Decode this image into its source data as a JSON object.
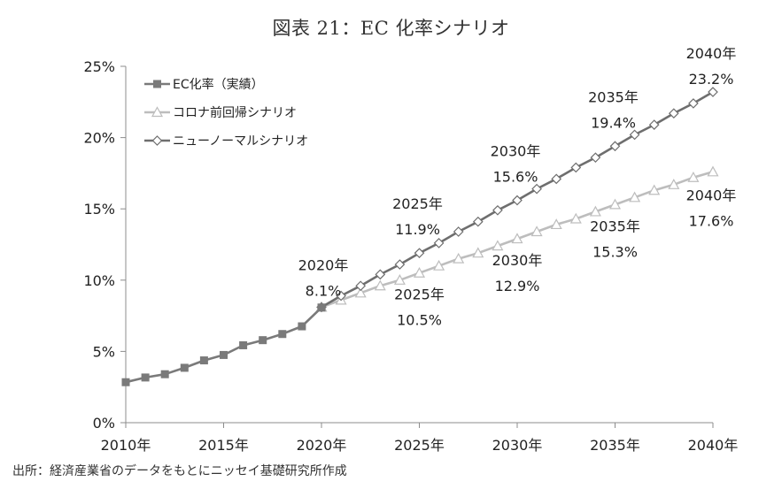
{
  "title": "図表 21：EC 化率シナリオ",
  "source": "出所：経済産業省のデータをもとにニッセイ基礎研究所作成",
  "chart_data": {
    "type": "line",
    "title": "図表 21：EC 化率シナリオ",
    "xlabel": "",
    "ylabel": "",
    "x_ticks": [
      "2010年",
      "2015年",
      "2020年",
      "2025年",
      "2030年",
      "2035年",
      "2040年"
    ],
    "y_ticks": [
      "0%",
      "5%",
      "10%",
      "15%",
      "20%",
      "25%"
    ],
    "xlim": [
      2010,
      2040
    ],
    "ylim": [
      0,
      25
    ],
    "grid": false,
    "legend_position": "top-left",
    "series": [
      {
        "name": "EC化率（実績）",
        "color": "#7a7a7a",
        "marker": "square",
        "x": [
          2010,
          2011,
          2012,
          2013,
          2014,
          2015,
          2016,
          2017,
          2018,
          2019,
          2020
        ],
        "values": [
          2.84,
          3.17,
          3.4,
          3.85,
          4.37,
          4.75,
          5.43,
          5.79,
          6.22,
          6.76,
          8.08
        ]
      },
      {
        "name": "コロナ前回帰シナリオ",
        "color": "#bdbdbd",
        "marker": "triangle",
        "x": [
          2020,
          2021,
          2022,
          2023,
          2024,
          2025,
          2026,
          2027,
          2028,
          2029,
          2030,
          2031,
          2032,
          2033,
          2034,
          2035,
          2036,
          2037,
          2038,
          2039,
          2040
        ],
        "values": [
          8.1,
          8.6,
          9.1,
          9.6,
          10.0,
          10.5,
          11.0,
          11.5,
          11.9,
          12.4,
          12.9,
          13.4,
          13.9,
          14.3,
          14.8,
          15.3,
          15.8,
          16.3,
          16.7,
          17.2,
          17.6
        ]
      },
      {
        "name": "ニューノーマルシナリオ",
        "color": "#6e6e6e",
        "marker": "diamond",
        "x": [
          2020,
          2021,
          2022,
          2023,
          2024,
          2025,
          2026,
          2027,
          2028,
          2029,
          2030,
          2031,
          2032,
          2033,
          2034,
          2035,
          2036,
          2037,
          2038,
          2039,
          2040
        ],
        "values": [
          8.1,
          8.9,
          9.6,
          10.4,
          11.1,
          11.9,
          12.6,
          13.4,
          14.1,
          14.9,
          15.6,
          16.4,
          17.1,
          17.9,
          18.6,
          19.4,
          20.2,
          20.9,
          21.7,
          22.4,
          23.2
        ]
      }
    ],
    "annotations": [
      {
        "year": "2020年",
        "value": "8.1%",
        "x": 2020,
        "y": 8.1,
        "series": "base"
      },
      {
        "year": "2025年",
        "value": "11.9%",
        "x": 2025,
        "y": 11.9,
        "series": "ニューノーマルシナリオ"
      },
      {
        "year": "2030年",
        "value": "15.6%",
        "x": 2030,
        "y": 15.6,
        "series": "ニューノーマルシナリオ"
      },
      {
        "year": "2035年",
        "value": "19.4%",
        "x": 2035,
        "y": 19.4,
        "series": "ニューノーマルシナリオ"
      },
      {
        "year": "2040年",
        "value": "23.2%",
        "x": 2040,
        "y": 23.2,
        "series": "ニューノーマルシナリオ"
      },
      {
        "year": "2025年",
        "value": "10.5%",
        "x": 2025,
        "y": 10.5,
        "series": "コロナ前回帰シナリオ"
      },
      {
        "year": "2030年",
        "value": "12.9%",
        "x": 2030,
        "y": 12.9,
        "series": "コロナ前回帰シナリオ"
      },
      {
        "year": "2035年",
        "value": "15.3%",
        "x": 2035,
        "y": 15.3,
        "series": "コロナ前回帰シナリオ"
      },
      {
        "year": "2040年",
        "value": "17.6%",
        "x": 2040,
        "y": 17.6,
        "series": "コロナ前回帰シナリオ"
      }
    ]
  }
}
